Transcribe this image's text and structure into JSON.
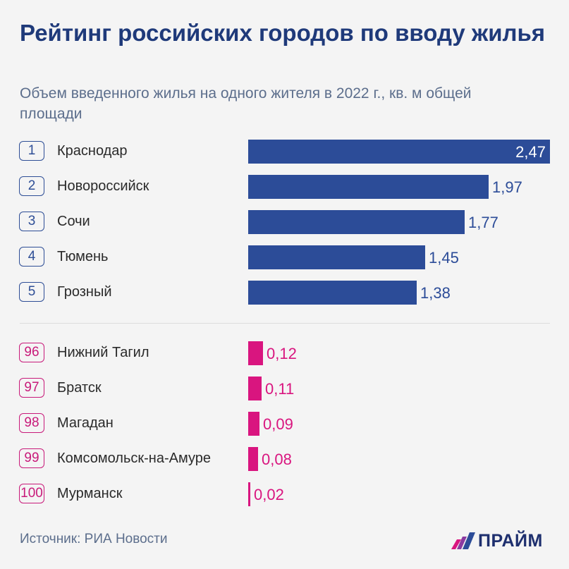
{
  "chart_data": {
    "type": "bar",
    "orientation": "horizontal",
    "title": "Рейтинг российских городов по вводу жилья",
    "subtitle": "Объем введенного жилья на одного жителя в 2022 г., кв. м общей площади",
    "groups": [
      {
        "color": "#2c4c98",
        "items": [
          {
            "rank": "1",
            "city": "Краснодар",
            "value": 2.47,
            "label": "2,47"
          },
          {
            "rank": "2",
            "city": "Новороссийск",
            "value": 1.97,
            "label": "1,97"
          },
          {
            "rank": "3",
            "city": "Сочи",
            "value": 1.77,
            "label": "1,77"
          },
          {
            "rank": "4",
            "city": "Тюмень",
            "value": 1.45,
            "label": "1,45"
          },
          {
            "rank": "5",
            "city": "Грозный",
            "value": 1.38,
            "label": "1,38"
          }
        ]
      },
      {
        "color": "#d9157f",
        "items": [
          {
            "rank": "96",
            "city": "Нижний Тагил",
            "value": 0.12,
            "label": "0,12"
          },
          {
            "rank": "97",
            "city": "Братск",
            "value": 0.11,
            "label": "0,11"
          },
          {
            "rank": "98",
            "city": "Магадан",
            "value": 0.09,
            "label": "0,09"
          },
          {
            "rank": "99",
            "city": "Комсомольск-на-Амуре",
            "value": 0.08,
            "label": "0,08"
          },
          {
            "rank": "100",
            "city": "Мурманск",
            "value": 0.02,
            "label": "0,02"
          }
        ]
      }
    ],
    "xlim": [
      0,
      2.47
    ],
    "grid": false,
    "legend": "none"
  },
  "footer": {
    "source": "Источник: РИА Новости",
    "logo_text": "ПРАЙМ"
  }
}
